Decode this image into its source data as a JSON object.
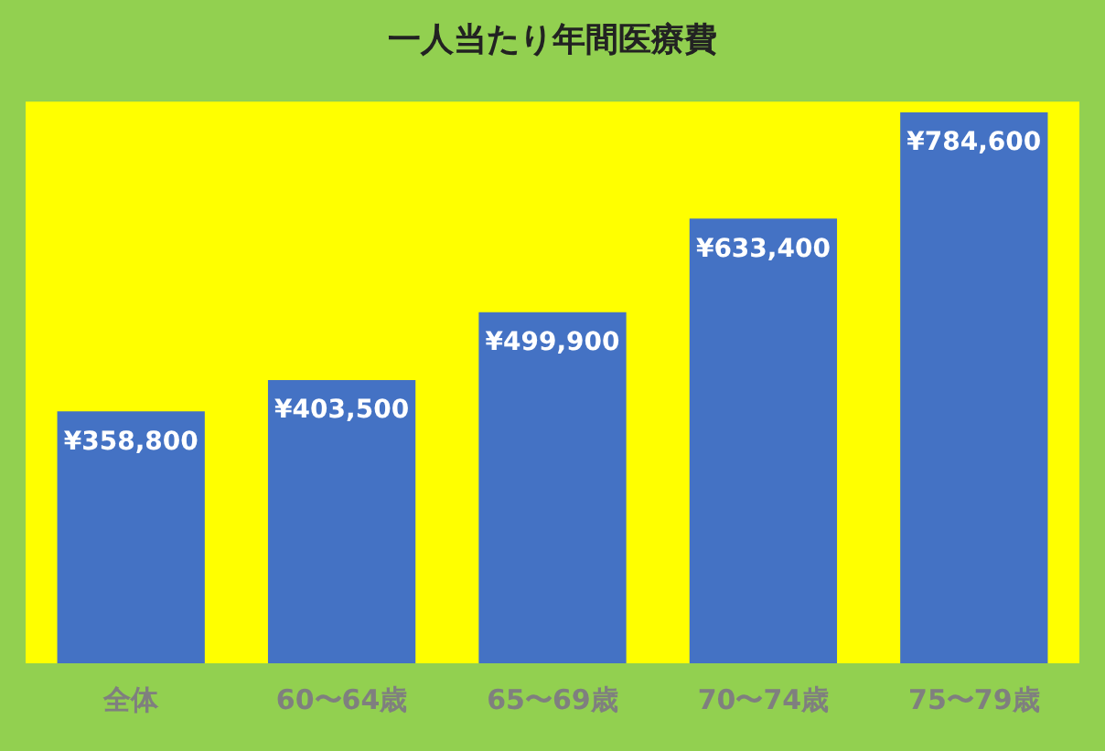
{
  "chart_data": {
    "type": "bar",
    "title": "一人当たり年間医療費",
    "categories": [
      "全体",
      "60〜64歳",
      "65〜69歳",
      "70〜74歳",
      "75〜79歳"
    ],
    "values": [
      358800,
      403500,
      499900,
      633400,
      784600
    ],
    "value_labels": [
      "¥358,800",
      "¥403,500",
      "¥499,900",
      "¥633,400",
      "¥784,600"
    ],
    "color": "#4472c4",
    "grid": false,
    "legend": false
  }
}
